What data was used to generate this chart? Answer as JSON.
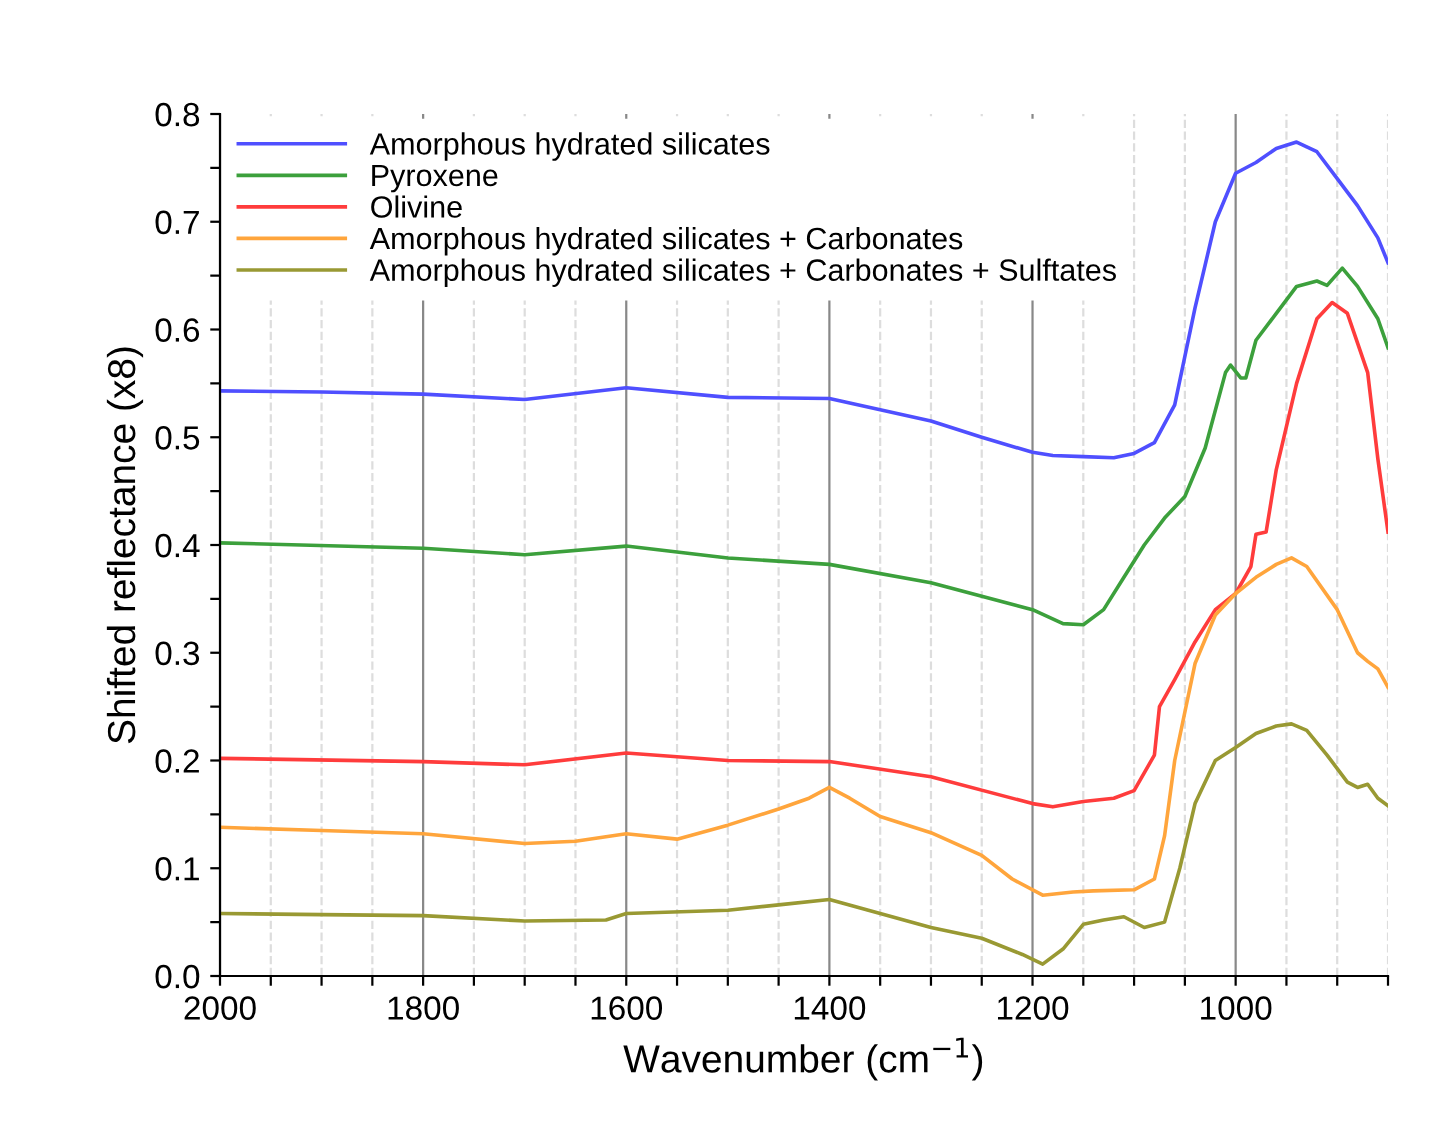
{
  "chart_data": {
    "type": "line",
    "xlabel": "Wavenumber (cm$^{−1}$)",
    "ylabel": "Shifted reflectance (x8)",
    "xlim": [
      2000,
      850
    ],
    "ylim": [
      0,
      0.8
    ],
    "xticks": [
      2000,
      {
        "value": 1950,
        "label": null
      },
      1800,
      {
        "value": 1900,
        "label": null
      },
      {
        "value": 1850,
        "label": null
      },
      {
        "value": 1750,
        "label": null
      },
      {
        "value": 1700,
        "label": null
      },
      {
        "value": 1650,
        "label": null
      },
      1600,
      {
        "value": 1550,
        "label": null
      },
      {
        "value": 1500,
        "label": null
      },
      {
        "value": 1450,
        "label": null
      },
      1400,
      {
        "value": 1350,
        "label": null
      },
      {
        "value": 1300,
        "label": null
      },
      {
        "value": 1250,
        "label": null
      },
      1200,
      {
        "value": 1150,
        "label": null
      },
      {
        "value": 1100,
        "label": null
      },
      {
        "value": 1050,
        "label": null
      },
      1000,
      {
        "value": 950,
        "label": null
      },
      {
        "value": 900,
        "label": null
      },
      {
        "value": 850,
        "label": null
      }
    ],
    "yticks": [
      {
        "value": 0,
        "label": "0.0"
      },
      {
        "value": 0.05,
        "label": null
      },
      0.1,
      {
        "value": 0.15,
        "label": null
      },
      0.2,
      {
        "value": 0.25,
        "label": null
      },
      0.3,
      {
        "value": 0.35,
        "label": null
      },
      0.4,
      {
        "value": 0.45,
        "label": null
      },
      0.5,
      {
        "value": 0.55,
        "label": null
      },
      0.6,
      {
        "value": 0.65,
        "label": null
      },
      0.7,
      {
        "value": 0.75,
        "label": null
      },
      0.8
    ],
    "grid": "x",
    "legend": "top left",
    "line_style": "solid",
    "marker": "none",
    "series": [
      {
        "name": "Amorphous hydrated silicates",
        "color": "#4f4fff",
        "x": [
          2000,
          1900,
          1800,
          1700,
          1600,
          1500,
          1400,
          1300,
          1250,
          1200,
          1180,
          1150,
          1120,
          1100,
          1080,
          1060,
          1040,
          1020,
          1000,
          980,
          960,
          940,
          920,
          900,
          880,
          860,
          850
        ],
        "values": [
          0.543,
          0.542,
          0.54,
          0.535,
          0.546,
          0.537,
          0.536,
          0.515,
          0.5,
          0.486,
          0.483,
          0.482,
          0.481,
          0.485,
          0.495,
          0.53,
          0.62,
          0.7,
          0.745,
          0.755,
          0.768,
          0.774,
          0.765,
          0.74,
          0.715,
          0.685,
          0.662
        ]
      },
      {
        "name": "Pyroxene",
        "color": "#3ca03c",
        "x": [
          2000,
          1800,
          1700,
          1600,
          1500,
          1400,
          1300,
          1200,
          1170,
          1150,
          1130,
          1110,
          1090,
          1070,
          1050,
          1030,
          1010,
          1005,
          995,
          990,
          980,
          960,
          940,
          920,
          910,
          895,
          880,
          860,
          850
        ],
        "values": [
          0.402,
          0.397,
          0.391,
          0.399,
          0.388,
          0.382,
          0.365,
          0.34,
          0.327,
          0.326,
          0.34,
          0.37,
          0.4,
          0.425,
          0.445,
          0.49,
          0.56,
          0.567,
          0.555,
          0.555,
          0.59,
          0.615,
          0.64,
          0.645,
          0.641,
          0.657,
          0.64,
          0.61,
          0.583
        ]
      },
      {
        "name": "Olivine",
        "color": "#ff3c3c",
        "x": [
          2000,
          1800,
          1700,
          1600,
          1500,
          1400,
          1300,
          1200,
          1180,
          1150,
          1120,
          1100,
          1080,
          1075,
          1060,
          1040,
          1020,
          1000,
          985,
          980,
          970,
          960,
          940,
          920,
          905,
          890,
          870,
          860,
          850
        ],
        "values": [
          0.202,
          0.199,
          0.196,
          0.207,
          0.2,
          0.199,
          0.185,
          0.16,
          0.157,
          0.162,
          0.165,
          0.172,
          0.205,
          0.25,
          0.275,
          0.31,
          0.34,
          0.355,
          0.38,
          0.41,
          0.412,
          0.47,
          0.55,
          0.61,
          0.625,
          0.615,
          0.56,
          0.48,
          0.412
        ]
      },
      {
        "name": "Amorphous hydrated silicates + Carbonates",
        "color": "#ffa53c",
        "x": [
          2000,
          1900,
          1800,
          1700,
          1650,
          1600,
          1550,
          1500,
          1450,
          1420,
          1400,
          1380,
          1350,
          1300,
          1250,
          1220,
          1190,
          1160,
          1140,
          1100,
          1080,
          1070,
          1060,
          1040,
          1020,
          1000,
          980,
          960,
          945,
          930,
          900,
          880,
          870,
          860,
          850
        ],
        "values": [
          0.138,
          0.135,
          0.132,
          0.123,
          0.125,
          0.132,
          0.127,
          0.14,
          0.155,
          0.165,
          0.175,
          0.165,
          0.148,
          0.133,
          0.112,
          0.09,
          0.075,
          0.078,
          0.079,
          0.08,
          0.09,
          0.13,
          0.2,
          0.29,
          0.335,
          0.355,
          0.37,
          0.382,
          0.388,
          0.38,
          0.34,
          0.3,
          0.292,
          0.285,
          0.268
        ]
      },
      {
        "name": "Amorphous hydrated silicates + Carbonates + Sulftates",
        "color": "#999933",
        "x": [
          2000,
          1900,
          1800,
          1700,
          1620,
          1600,
          1500,
          1450,
          1400,
          1350,
          1300,
          1250,
          1210,
          1190,
          1170,
          1150,
          1130,
          1110,
          1090,
          1070,
          1055,
          1040,
          1020,
          1000,
          980,
          960,
          945,
          930,
          910,
          890,
          880,
          870,
          860,
          850
        ],
        "values": [
          0.058,
          0.057,
          0.056,
          0.051,
          0.052,
          0.058,
          0.061,
          0.066,
          0.071,
          0.058,
          0.045,
          0.035,
          0.02,
          0.011,
          0.025,
          0.048,
          0.052,
          0.055,
          0.045,
          0.05,
          0.1,
          0.16,
          0.2,
          0.212,
          0.225,
          0.232,
          0.234,
          0.228,
          0.205,
          0.18,
          0.175,
          0.178,
          0.165,
          0.158
        ]
      }
    ]
  }
}
